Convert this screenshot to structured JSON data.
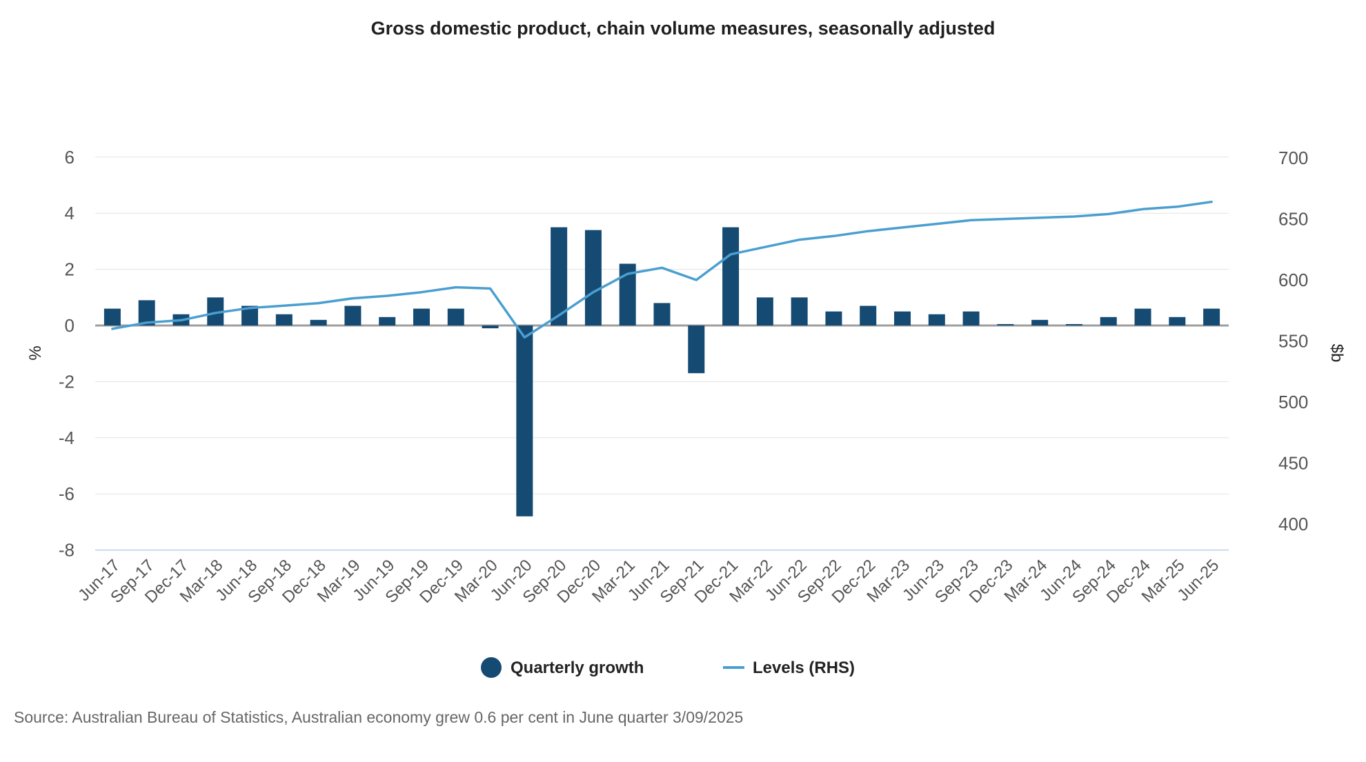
{
  "chart_data": {
    "type": "bar",
    "title": "Gross domestic product, chain volume measures, seasonally adjusted",
    "categories": [
      "Jun-17",
      "Sep-17",
      "Dec-17",
      "Mar-18",
      "Jun-18",
      "Sep-18",
      "Dec-18",
      "Mar-19",
      "Jun-19",
      "Sep-19",
      "Dec-19",
      "Mar-20",
      "Jun-20",
      "Sep-20",
      "Dec-20",
      "Mar-21",
      "Jun-21",
      "Sep-21",
      "Dec-21",
      "Mar-22",
      "Jun-22",
      "Sep-22",
      "Dec-22",
      "Mar-23",
      "Jun-23",
      "Sep-23",
      "Dec-23",
      "Mar-24",
      "Jun-24",
      "Sep-24",
      "Dec-24",
      "Mar-25",
      "Jun-25"
    ],
    "series": [
      {
        "name": "Quarterly growth",
        "type": "bar",
        "axis": "left",
        "color": "#154A72",
        "values": [
          0.6,
          0.9,
          0.4,
          1.0,
          0.7,
          0.4,
          0.2,
          0.7,
          0.3,
          0.6,
          0.6,
          -0.1,
          -6.8,
          3.5,
          3.4,
          2.2,
          0.8,
          -1.7,
          3.5,
          1.0,
          1.0,
          0.5,
          0.7,
          0.5,
          0.4,
          0.5,
          0.05,
          0.2,
          0.05,
          0.3,
          0.6,
          0.3,
          0.6
        ]
      },
      {
        "name": "Levels (RHS)",
        "type": "line",
        "axis": "right",
        "color": "#4A9FD0",
        "values": [
          560,
          565,
          567,
          573,
          577,
          579,
          581,
          585,
          587,
          590,
          594,
          593,
          553,
          571,
          590,
          605,
          610,
          600,
          621,
          627,
          633,
          636,
          640,
          643,
          646,
          649,
          650,
          651,
          652,
          654,
          658,
          660,
          664
        ]
      }
    ],
    "y_left": {
      "label": "%",
      "ylim": [
        -8,
        6
      ],
      "ticks": [
        6,
        4,
        2,
        0,
        -2,
        -4,
        -6,
        -8
      ]
    },
    "y_right": {
      "label": "$b",
      "ylim": [
        380,
        700
      ],
      "ticks": [
        700,
        650,
        600,
        550,
        500,
        450,
        400
      ]
    },
    "grid": true,
    "legend": "bottom-center",
    "zero_line_color": "#9E9E9E",
    "grid_color": "#E3E3E3",
    "baseline_color": "#B7CDE3",
    "source": "Source: Australian Bureau of Statistics, Australian economy grew 0.6 per cent in June quarter 3/09/2025"
  }
}
